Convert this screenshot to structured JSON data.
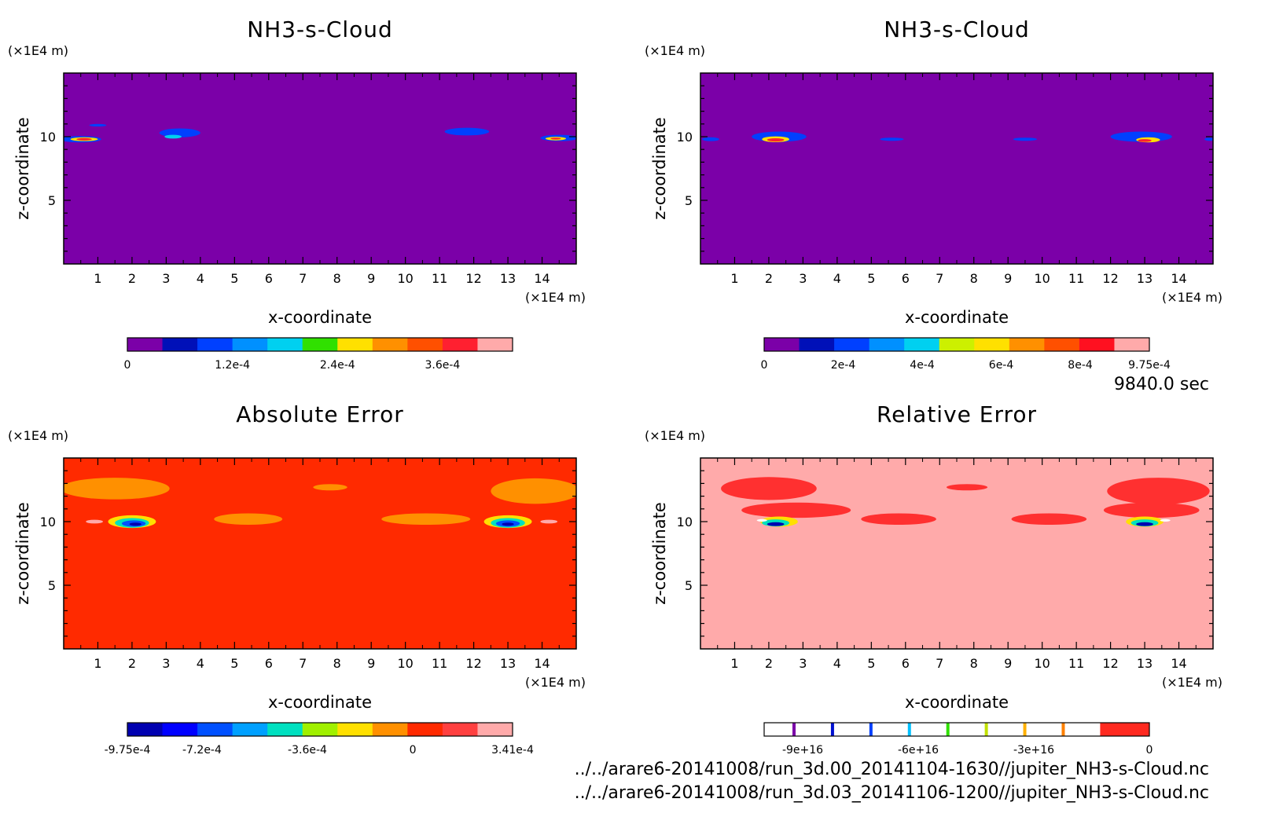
{
  "time_label": "9840.0 sec",
  "files": [
    "../../arare6-20141008/run_3d.00_20141104-1630//jupiter_NH3-s-Cloud.nc",
    "../../arare6-20141008/run_3d.03_20141106-1200//jupiter_NH3-s-Cloud.nc"
  ],
  "chart_data": [
    {
      "type": "heatmap",
      "title": "NH3-s-Cloud",
      "xlabel": "x-coordinate",
      "ylabel": "z-coordinate",
      "x_unit": "(×1E4 m)",
      "y_unit": "(×1E4 m)",
      "xlim": [
        0,
        15
      ],
      "ylim": [
        0,
        15
      ],
      "x_ticks": [
        1,
        2,
        3,
        4,
        5,
        6,
        7,
        8,
        9,
        10,
        11,
        12,
        13,
        14
      ],
      "y_ticks": [
        5,
        10
      ],
      "background_color": "#7b00a8",
      "colorbar": {
        "colors": [
          "#7b00a8",
          "#0010b8",
          "#0040ff",
          "#0090ff",
          "#00d0f0",
          "#30e000",
          "#ffe000",
          "#ff9000",
          "#ff5000",
          "#ff2030",
          "#ffaaaa"
        ],
        "tick_labels": [
          "0",
          "1.2e-4",
          "2.4e-4",
          "3.6e-4"
        ],
        "tick_values": [
          0,
          0.00012,
          0.00024,
          0.00036
        ],
        "range": [
          0,
          0.00044
        ]
      },
      "features": [
        {
          "x": 0.5,
          "z": 9.8,
          "w": 1.2,
          "h": 0.5,
          "color": "#0040ff"
        },
        {
          "x": 0.6,
          "z": 9.8,
          "w": 0.8,
          "h": 0.3,
          "color": "#ffe000"
        },
        {
          "x": 0.6,
          "z": 9.8,
          "w": 0.45,
          "h": 0.18,
          "color": "#ff2030"
        },
        {
          "x": 1.0,
          "z": 10.9,
          "w": 0.5,
          "h": 0.2,
          "color": "#0040ff"
        },
        {
          "x": 3.4,
          "z": 10.3,
          "w": 1.2,
          "h": 0.7,
          "color": "#0040ff"
        },
        {
          "x": 3.2,
          "z": 10.0,
          "w": 0.5,
          "h": 0.3,
          "color": "#00d0f0"
        },
        {
          "x": 11.8,
          "z": 10.4,
          "w": 1.3,
          "h": 0.6,
          "color": "#0040ff"
        },
        {
          "x": 14.5,
          "z": 9.9,
          "w": 1.1,
          "h": 0.5,
          "color": "#0040ff"
        },
        {
          "x": 14.4,
          "z": 9.85,
          "w": 0.6,
          "h": 0.28,
          "color": "#ffe000"
        },
        {
          "x": 14.4,
          "z": 9.85,
          "w": 0.3,
          "h": 0.15,
          "color": "#ff2030"
        }
      ]
    },
    {
      "type": "heatmap",
      "title": "NH3-s-Cloud",
      "xlabel": "x-coordinate",
      "ylabel": "z-coordinate",
      "x_unit": "(×1E4 m)",
      "y_unit": "(×1E4 m)",
      "xlim": [
        0,
        15
      ],
      "ylim": [
        0,
        15
      ],
      "x_ticks": [
        1,
        2,
        3,
        4,
        5,
        6,
        7,
        8,
        9,
        10,
        11,
        12,
        13,
        14
      ],
      "y_ticks": [
        5,
        10
      ],
      "background_color": "#7b00a8",
      "colorbar": {
        "colors": [
          "#7b00a8",
          "#0010b8",
          "#0040ff",
          "#0090ff",
          "#00d0f0",
          "#ccf000",
          "#ffe000",
          "#ff9000",
          "#ff5000",
          "#ff1020",
          "#ffaaaa"
        ],
        "tick_labels": [
          "0",
          "2e-4",
          "4e-4",
          "6e-4",
          "8e-4",
          "9.75e-4"
        ],
        "tick_values": [
          0,
          0.0002,
          0.0004,
          0.0006,
          0.0008,
          0.000975
        ],
        "range": [
          0,
          0.000975
        ]
      },
      "features": [
        {
          "x": 0.3,
          "z": 9.8,
          "w": 0.5,
          "h": 0.3,
          "color": "#0040ff"
        },
        {
          "x": 2.3,
          "z": 10.0,
          "w": 1.6,
          "h": 0.8,
          "color": "#0040ff"
        },
        {
          "x": 2.2,
          "z": 9.8,
          "w": 0.8,
          "h": 0.45,
          "color": "#ffe000"
        },
        {
          "x": 2.2,
          "z": 9.75,
          "w": 0.5,
          "h": 0.25,
          "color": "#ff2030"
        },
        {
          "x": 5.6,
          "z": 9.8,
          "w": 0.7,
          "h": 0.25,
          "color": "#0040ff"
        },
        {
          "x": 9.5,
          "z": 9.8,
          "w": 0.7,
          "h": 0.25,
          "color": "#0040ff"
        },
        {
          "x": 12.9,
          "z": 10.0,
          "w": 1.8,
          "h": 0.8,
          "color": "#0040ff"
        },
        {
          "x": 13.1,
          "z": 9.75,
          "w": 0.7,
          "h": 0.4,
          "color": "#ffe000"
        },
        {
          "x": 13.0,
          "z": 9.7,
          "w": 0.4,
          "h": 0.22,
          "color": "#ff2030"
        },
        {
          "x": 14.9,
          "z": 9.8,
          "w": 0.3,
          "h": 0.25,
          "color": "#0040ff"
        }
      ]
    },
    {
      "type": "heatmap",
      "title": "Absolute Error",
      "xlabel": "x-coordinate",
      "ylabel": "z-coordinate",
      "x_unit": "(×1E4 m)",
      "y_unit": "(×1E4 m)",
      "xlim": [
        0,
        15
      ],
      "ylim": [
        0,
        15
      ],
      "x_ticks": [
        1,
        2,
        3,
        4,
        5,
        6,
        7,
        8,
        9,
        10,
        11,
        12,
        13,
        14
      ],
      "y_ticks": [
        5,
        10
      ],
      "background_color": "#ff2a00",
      "colorbar": {
        "colors": [
          "#0000b0",
          "#0000ff",
          "#0050ff",
          "#00a0ff",
          "#00e0c0",
          "#a0f000",
          "#ffe000",
          "#ff9000",
          "#ff2a00",
          "#ff4040",
          "#ffaaaa"
        ],
        "tick_labels": [
          "-9.75e-4",
          "-7.2e-4",
          "-3.6e-4",
          "0",
          "3.41e-4"
        ],
        "tick_values": [
          -0.000975,
          -0.00072,
          -0.00036,
          0,
          0.000341
        ],
        "range": [
          -0.000975,
          0.000341
        ]
      },
      "features": [
        {
          "x": 1.5,
          "z": 12.6,
          "w": 3.2,
          "h": 1.7,
          "color": "#ff9000"
        },
        {
          "x": 5.4,
          "z": 10.2,
          "w": 2.0,
          "h": 0.9,
          "color": "#ff9000"
        },
        {
          "x": 10.6,
          "z": 10.2,
          "w": 2.6,
          "h": 0.9,
          "color": "#ff9000"
        },
        {
          "x": 13.8,
          "z": 12.4,
          "w": 2.6,
          "h": 2.0,
          "color": "#ff9000"
        },
        {
          "x": 7.8,
          "z": 12.7,
          "w": 1.0,
          "h": 0.5,
          "color": "#ff9000"
        },
        {
          "x": 2.0,
          "z": 10.0,
          "w": 1.4,
          "h": 1.0,
          "color": "#ffe000"
        },
        {
          "x": 2.0,
          "z": 9.9,
          "w": 1.0,
          "h": 0.75,
          "color": "#00e0c0"
        },
        {
          "x": 2.05,
          "z": 9.85,
          "w": 0.7,
          "h": 0.5,
          "color": "#0050ff"
        },
        {
          "x": 2.1,
          "z": 9.8,
          "w": 0.35,
          "h": 0.25,
          "color": "#0000b0"
        },
        {
          "x": 13.0,
          "z": 10.0,
          "w": 1.4,
          "h": 1.0,
          "color": "#ffe000"
        },
        {
          "x": 13.0,
          "z": 9.9,
          "w": 1.0,
          "h": 0.75,
          "color": "#00e0c0"
        },
        {
          "x": 13.0,
          "z": 9.85,
          "w": 0.7,
          "h": 0.5,
          "color": "#0050ff"
        },
        {
          "x": 13.0,
          "z": 9.8,
          "w": 0.35,
          "h": 0.25,
          "color": "#0000b0"
        },
        {
          "x": 0.9,
          "z": 10.0,
          "w": 0.5,
          "h": 0.3,
          "color": "#ffaaaa"
        },
        {
          "x": 14.2,
          "z": 10.0,
          "w": 0.5,
          "h": 0.3,
          "color": "#ffaaaa"
        }
      ]
    },
    {
      "type": "heatmap",
      "title": "Relative Error",
      "xlabel": "x-coordinate",
      "ylabel": "z-coordinate",
      "x_unit": "(×1E4 m)",
      "y_unit": "(×1E4 m)",
      "xlim": [
        0,
        15
      ],
      "ylim": [
        0,
        15
      ],
      "x_ticks": [
        1,
        2,
        3,
        4,
        5,
        6,
        7,
        8,
        9,
        10,
        11,
        12,
        13,
        14
      ],
      "y_ticks": [
        5,
        10
      ],
      "background_color": "#ffaaaa",
      "colorbar": {
        "colors": [
          "#7b00a8",
          "#0010d0",
          "#0040ff",
          "#00c0ff",
          "#30e000",
          "#c0e000",
          "#ffb000",
          "#ff8000",
          "#ff2a20"
        ],
        "tick_labels": [
          "-9e+16",
          "-6e+16",
          "-3e+16",
          "0"
        ],
        "tick_values": [
          -9e+16,
          -6e+16,
          -3e+16,
          0
        ],
        "range": [
          -1e+17,
          0
        ],
        "style": "lines"
      },
      "features": [
        {
          "x": 2.0,
          "z": 12.6,
          "w": 2.8,
          "h": 1.8,
          "color": "#ff3030"
        },
        {
          "x": 2.8,
          "z": 10.9,
          "w": 3.2,
          "h": 1.2,
          "color": "#ff3030"
        },
        {
          "x": 5.8,
          "z": 10.2,
          "w": 2.2,
          "h": 0.9,
          "color": "#ff3030"
        },
        {
          "x": 10.2,
          "z": 10.2,
          "w": 2.2,
          "h": 0.9,
          "color": "#ff3030"
        },
        {
          "x": 13.4,
          "z": 12.4,
          "w": 3.0,
          "h": 2.1,
          "color": "#ff3030"
        },
        {
          "x": 13.2,
          "z": 10.9,
          "w": 2.8,
          "h": 1.2,
          "color": "#ff3030"
        },
        {
          "x": 7.8,
          "z": 12.7,
          "w": 1.2,
          "h": 0.5,
          "color": "#ff3030"
        },
        {
          "x": 2.3,
          "z": 10.0,
          "w": 1.1,
          "h": 0.8,
          "color": "#ffe000"
        },
        {
          "x": 2.2,
          "z": 9.9,
          "w": 0.8,
          "h": 0.55,
          "color": "#00e0c0"
        },
        {
          "x": 2.2,
          "z": 9.8,
          "w": 0.5,
          "h": 0.3,
          "color": "#0000b0"
        },
        {
          "x": 13.0,
          "z": 10.0,
          "w": 1.1,
          "h": 0.8,
          "color": "#ffe000"
        },
        {
          "x": 13.0,
          "z": 9.9,
          "w": 0.8,
          "h": 0.55,
          "color": "#00e0c0"
        },
        {
          "x": 13.0,
          "z": 9.8,
          "w": 0.5,
          "h": 0.3,
          "color": "#0000b0"
        },
        {
          "x": 1.8,
          "z": 10.1,
          "w": 0.3,
          "h": 0.2,
          "color": "#ffffff"
        },
        {
          "x": 13.6,
          "z": 10.1,
          "w": 0.3,
          "h": 0.2,
          "color": "#ffffff"
        }
      ]
    }
  ]
}
